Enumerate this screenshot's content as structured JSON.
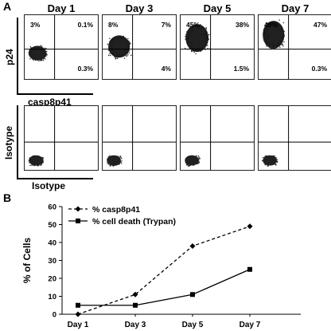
{
  "panel_a": {
    "label": "A",
    "days": [
      "Day 1",
      "Day 3",
      "Day 5",
      "Day 7"
    ],
    "top_row": {
      "y_label": "p24",
      "x_label": "casp8p41",
      "quadrants": [
        {
          "ul": "3%",
          "ur": "0.1%",
          "lr": "0.3%"
        },
        {
          "ul": "8%",
          "ur": "7%",
          "lr": "4%"
        },
        {
          "ul": "45%",
          "ur": "38%",
          "lr": "1.5%"
        },
        {
          "ul": "49%",
          "ur": "47%",
          "lr": "0.3%"
        }
      ]
    },
    "bottom_row": {
      "y_label": "Isotype",
      "x_label": "Isotype"
    }
  },
  "panel_b": {
    "label": "B"
  },
  "chart_data": {
    "type": "line",
    "categories": [
      "Day 1",
      "Day 3",
      "Day 5",
      "Day 7"
    ],
    "ylabel": "% of Cells",
    "xlabel": "",
    "ylim": [
      0,
      60
    ],
    "yticks": [
      0,
      10,
      20,
      30,
      40,
      50,
      60
    ],
    "legend_position": "top-left",
    "series": [
      {
        "name": "% casp8p41",
        "values": [
          0,
          11,
          38,
          49
        ],
        "style": "dashed",
        "marker": "diamond",
        "color": "#000000"
      },
      {
        "name": "% cell death (Trypan)",
        "values": [
          5,
          5,
          11,
          25
        ],
        "style": "solid",
        "marker": "square",
        "color": "#000000"
      }
    ]
  }
}
